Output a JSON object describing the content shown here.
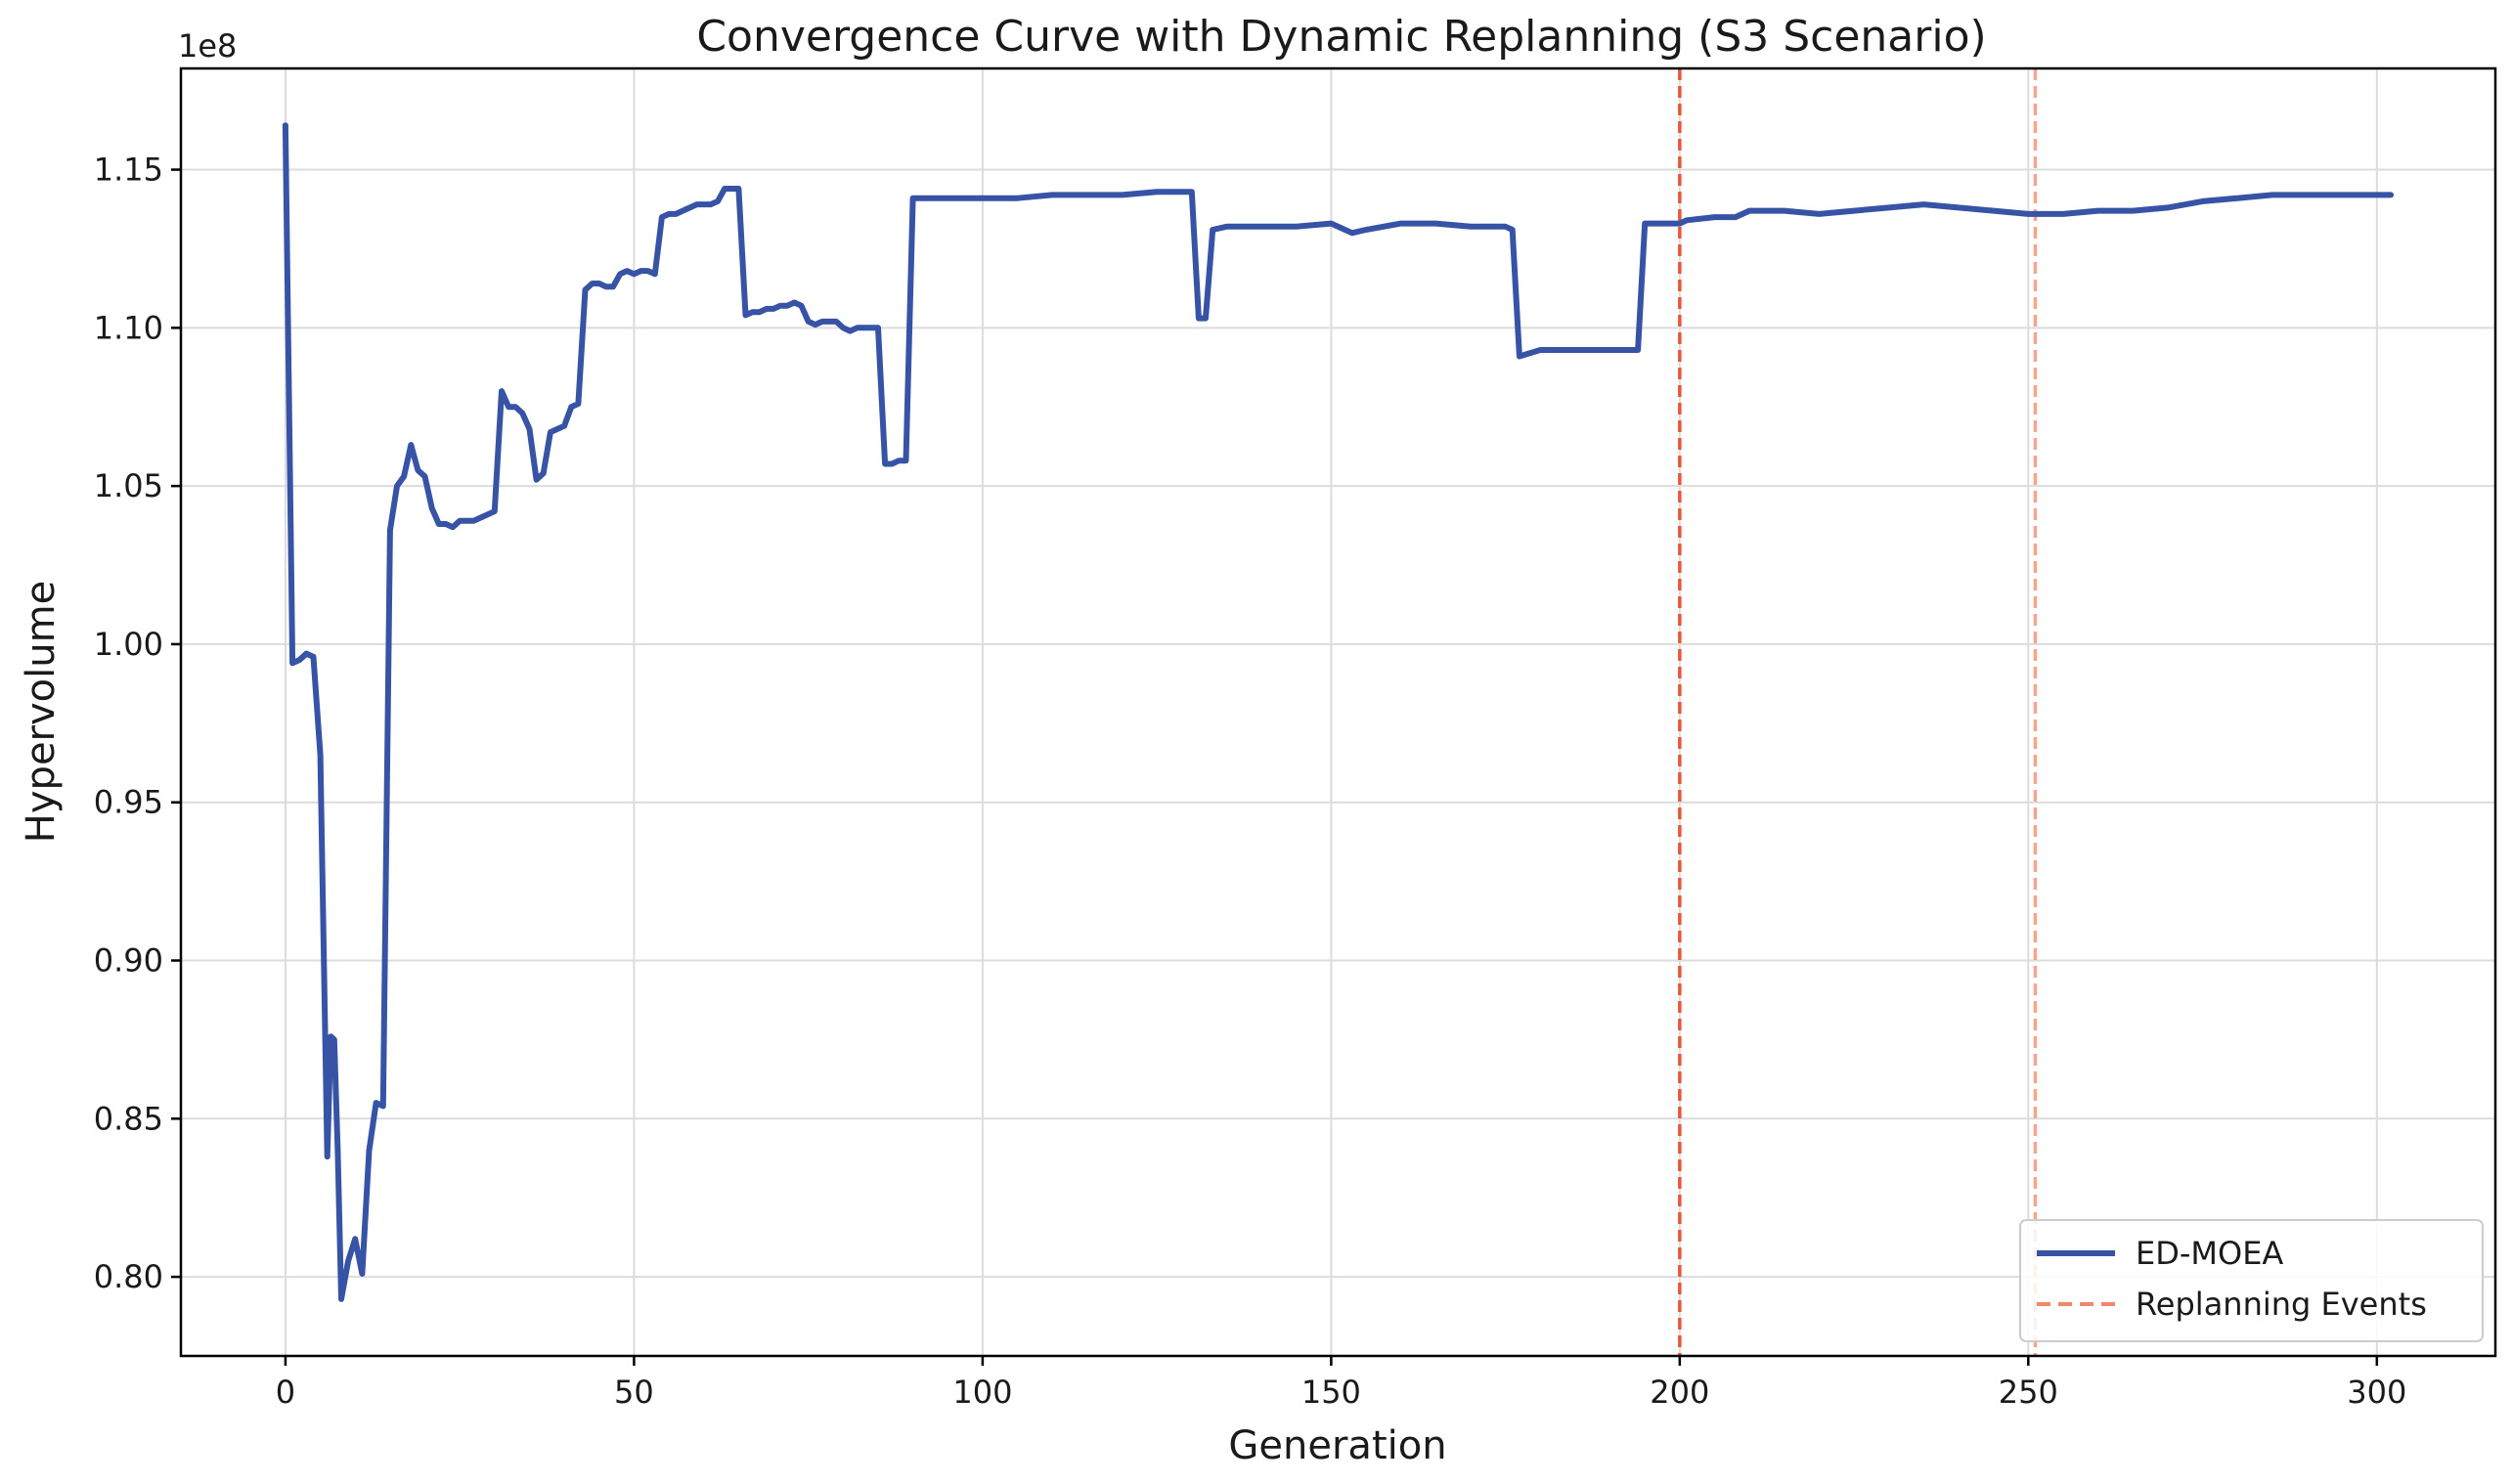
{
  "chart_data": {
    "type": "line",
    "title": "Convergence Curve with Dynamic Replanning (S3 Scenario)",
    "xlabel": "Generation",
    "ylabel": "Hypervolume",
    "y_offset_label": "1e8",
    "xlim": [
      -15,
      317
    ],
    "ylim": [
      0.775,
      1.182
    ],
    "x_ticks": [
      0,
      50,
      100,
      150,
      200,
      250,
      300
    ],
    "x_tick_labels": [
      "0",
      "50",
      "100",
      "150",
      "200",
      "250",
      "300"
    ],
    "y_ticks": [
      0.8,
      0.85,
      0.9,
      0.95,
      1.0,
      1.05,
      1.1,
      1.15
    ],
    "y_tick_labels": [
      "0.80",
      "0.85",
      "0.90",
      "0.95",
      "1.00",
      "1.05",
      "1.10",
      "1.15"
    ],
    "grid": true,
    "legend_position": "bottom-right",
    "series": [
      {
        "name": "ED-MOEA",
        "color": "#3653a6",
        "x": [
          0,
          1,
          2,
          3,
          4,
          5,
          6,
          6.5,
          7,
          7.5,
          8,
          9,
          10,
          11,
          12,
          13,
          14,
          15,
          16,
          17,
          18,
          19,
          20,
          21,
          22,
          23,
          24,
          25,
          26,
          27,
          28,
          29,
          30,
          31,
          32,
          33,
          34,
          35,
          36,
          37,
          38,
          39,
          40,
          41,
          42,
          43,
          44,
          45,
          46,
          47,
          48,
          49,
          50,
          51,
          52,
          53,
          54,
          55,
          56,
          57,
          58,
          59,
          60,
          61,
          62,
          63,
          64,
          65,
          66,
          67,
          68,
          69,
          70,
          71,
          72,
          73,
          74,
          75,
          76,
          77,
          78,
          79,
          80,
          81,
          82,
          83,
          84,
          85,
          86,
          87,
          88,
          89,
          90,
          95,
          100,
          105,
          110,
          115,
          120,
          125,
          130,
          131,
          132,
          133,
          135,
          140,
          145,
          150,
          153,
          155,
          160,
          165,
          170,
          174,
          175,
          176,
          177,
          180,
          185,
          190,
          194,
          195,
          200,
          201,
          205,
          208,
          210,
          215,
          220,
          225,
          230,
          235,
          240,
          245,
          250,
          255,
          260,
          265,
          270,
          275,
          280,
          285,
          290,
          295,
          300,
          302
        ],
        "values": [
          1.164,
          0.994,
          0.995,
          0.997,
          0.996,
          0.965,
          0.838,
          0.876,
          0.875,
          0.84,
          0.793,
          0.805,
          0.812,
          0.801,
          0.84,
          0.855,
          0.854,
          1.036,
          1.05,
          1.053,
          1.063,
          1.055,
          1.053,
          1.043,
          1.038,
          1.038,
          1.037,
          1.039,
          1.039,
          1.039,
          1.04,
          1.041,
          1.042,
          1.08,
          1.075,
          1.075,
          1.073,
          1.068,
          1.052,
          1.054,
          1.067,
          1.068,
          1.069,
          1.075,
          1.076,
          1.112,
          1.114,
          1.114,
          1.113,
          1.113,
          1.117,
          1.118,
          1.117,
          1.118,
          1.118,
          1.117,
          1.135,
          1.136,
          1.136,
          1.137,
          1.138,
          1.139,
          1.139,
          1.139,
          1.14,
          1.144,
          1.144,
          1.144,
          1.104,
          1.105,
          1.105,
          1.106,
          1.106,
          1.107,
          1.107,
          1.108,
          1.107,
          1.102,
          1.101,
          1.102,
          1.102,
          1.102,
          1.1,
          1.099,
          1.1,
          1.1,
          1.1,
          1.1,
          1.057,
          1.057,
          1.058,
          1.058,
          1.141,
          1.141,
          1.141,
          1.141,
          1.142,
          1.142,
          1.142,
          1.143,
          1.143,
          1.103,
          1.103,
          1.131,
          1.132,
          1.132,
          1.132,
          1.133,
          1.13,
          1.131,
          1.133,
          1.133,
          1.132,
          1.132,
          1.132,
          1.131,
          1.091,
          1.093,
          1.093,
          1.093,
          1.093,
          1.133,
          1.133,
          1.134,
          1.135,
          1.135,
          1.137,
          1.137,
          1.136,
          1.137,
          1.138,
          1.139,
          1.138,
          1.137,
          1.136,
          1.136,
          1.137,
          1.137,
          1.138,
          1.14,
          1.141,
          1.142,
          1.142,
          1.142,
          1.142,
          1.142
        ]
      }
    ],
    "events": {
      "name": "Replanning Events",
      "color": "#f0896a",
      "x": [
        200,
        251
      ],
      "colors": [
        "#e8573c",
        "#f4a58a"
      ]
    },
    "legend": [
      {
        "label": "ED-MOEA",
        "style": "solid",
        "color": "#3653a6"
      },
      {
        "label": "Replanning Events",
        "style": "dashed",
        "color": "#f0896a"
      }
    ]
  }
}
